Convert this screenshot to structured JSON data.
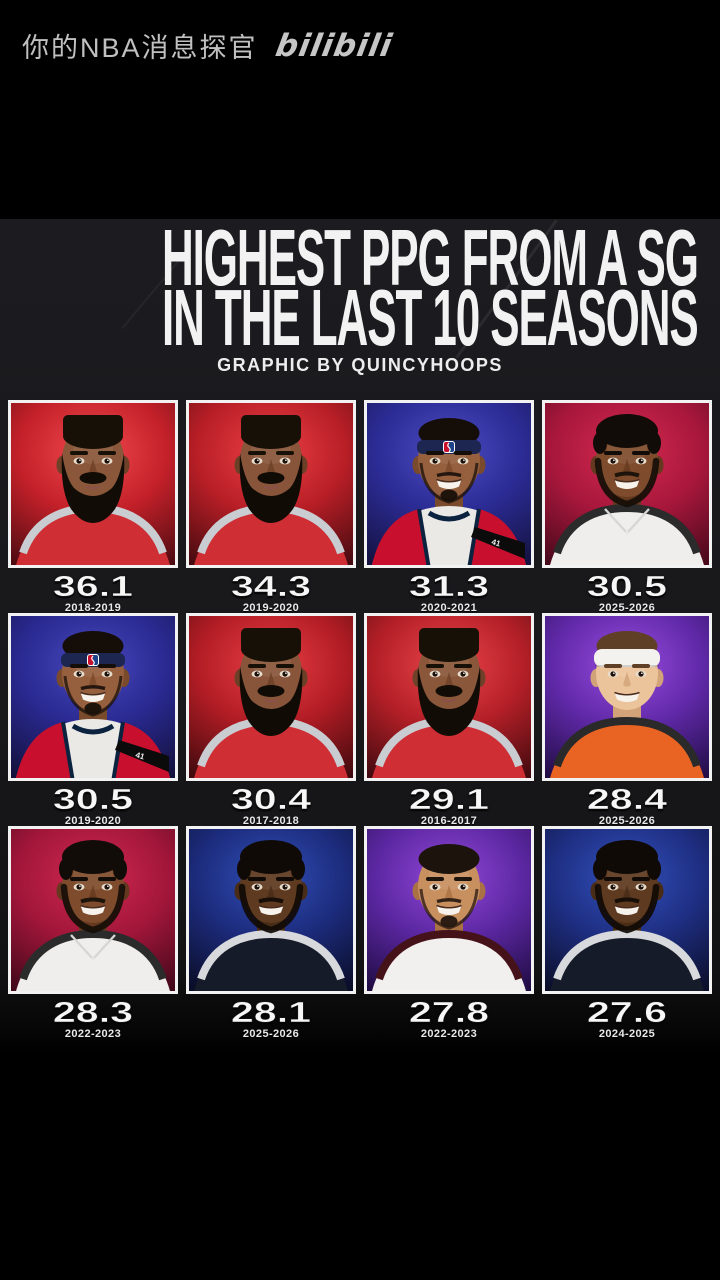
{
  "watermark": {
    "channel": "你的NBA消息探官",
    "logo": "bilibili"
  },
  "colors": {
    "page_bg": "#000000",
    "graphic_bg": "#19191c",
    "title_text": "#f2f2f2",
    "card_border": "#f2f2f2",
    "watermark_text": "#c0c0c0"
  },
  "graphic": {
    "title_line1": "HIGHEST PPG FROM A SG",
    "title_line2": "IN THE LAST 10 SEASONS",
    "credit": "GRAPHIC BY QUINCYHOOPS",
    "cards": [
      {
        "value": "36.1",
        "season": "2018-2019",
        "player": "james-harden",
        "portrait": {
          "bg": [
            "#f34a50",
            "#c32029",
            "#4e0c12"
          ],
          "skin": "#8a573a",
          "skin2": "#6e4128",
          "hair": "#171007",
          "hairStyle": "flattop",
          "headband": null,
          "beard": "full",
          "beardColor": "#120c07",
          "jersey": {
            "base": "#cf2e35",
            "trim": "#c9cdd1"
          },
          "chain": false,
          "sash": false,
          "smile": false
        }
      },
      {
        "value": "34.3",
        "season": "2019-2020",
        "player": "james-harden",
        "portrait": {
          "bg": [
            "#ee4046",
            "#b81e26",
            "#460b10"
          ],
          "skin": "#88553a",
          "skin2": "#6c4027",
          "hair": "#171007",
          "hairStyle": "flattop",
          "headband": null,
          "beard": "full",
          "beardColor": "#110b06",
          "jersey": {
            "base": "#cf2e35",
            "trim": "#c9cdd1"
          },
          "chain": false,
          "sash": false,
          "smile": false
        }
      },
      {
        "value": "31.3",
        "season": "2020-2021",
        "player": "bradley-beal",
        "portrait": {
          "bg": [
            "#4c4cc4",
            "#2b2b94",
            "#14123f"
          ],
          "skin": "#96603e",
          "skin2": "#7a4a2c",
          "hair": "#140d08",
          "hairStyle": "short",
          "headband": {
            "color": "#1c2650",
            "logo": true
          },
          "beard": "goatee",
          "beardColor": "#18100a",
          "jersey": {
            "base": "#ebe9e6",
            "accent": "#c8102e",
            "navy": "#0c2340",
            "patch": "41"
          },
          "chain": false,
          "sash": true,
          "smile": true
        }
      },
      {
        "value": "30.5",
        "season": "2025-2026",
        "player": "donovan-mitchell",
        "portrait": {
          "bg": [
            "#d62a50",
            "#a8173c",
            "#47091b"
          ],
          "skin": "#7e4c2c",
          "skin2": "#65391f",
          "hair": "#120c08",
          "hairStyle": "curly",
          "headband": null,
          "beard": "trim",
          "beardColor": "#150e08",
          "jersey": {
            "base": "#f0eeec",
            "trim": "#2b2b2b"
          },
          "chain": true,
          "sash": false,
          "smile": true
        }
      },
      {
        "value": "30.5",
        "season": "2019-2020",
        "player": "bradley-beal",
        "portrait": {
          "bg": [
            "#4848bf",
            "#292990",
            "#13113c"
          ],
          "skin": "#96603e",
          "skin2": "#7a4a2c",
          "hair": "#140d08",
          "hairStyle": "short",
          "headband": {
            "color": "#1c2650",
            "logo": true
          },
          "beard": "goatee",
          "beardColor": "#18100a",
          "jersey": {
            "base": "#ebe9e6",
            "accent": "#c8102e",
            "navy": "#0c2340",
            "patch": "41"
          },
          "chain": false,
          "sash": true,
          "smile": true
        }
      },
      {
        "value": "30.4",
        "season": "2017-2018",
        "player": "james-harden",
        "portrait": {
          "bg": [
            "#ea3e45",
            "#b11c24",
            "#400a0e"
          ],
          "skin": "#88553a",
          "skin2": "#6c4027",
          "hair": "#171007",
          "hairStyle": "flattop",
          "headband": null,
          "beard": "full",
          "beardColor": "#110b06",
          "jersey": {
            "base": "#cf2e35",
            "trim": "#c9cdd1"
          },
          "chain": false,
          "sash": false,
          "smile": false
        }
      },
      {
        "value": "29.1",
        "season": "2016-2017",
        "player": "james-harden",
        "portrait": {
          "bg": [
            "#ec454b",
            "#b41f27",
            "#430a0f"
          ],
          "skin": "#8a573a",
          "skin2": "#6e4128",
          "hair": "#171007",
          "hairStyle": "flattop",
          "headband": null,
          "beard": "full",
          "beardColor": "#120c07",
          "jersey": {
            "base": "#cf2e35",
            "trim": "#c9cdd1"
          },
          "chain": false,
          "sash": false,
          "smile": false
        }
      },
      {
        "value": "28.4",
        "season": "2025-2026",
        "player": "collin-gillespie",
        "portrait": {
          "bg": [
            "#9a4ce0",
            "#6029a8",
            "#220d47"
          ],
          "skin": "#ecc49c",
          "skin2": "#d2a378",
          "hair": "#5f4026",
          "hairStyle": "short",
          "headband": {
            "color": "#f4f2ee",
            "logo": false
          },
          "beard": "none",
          "beardColor": "#5f4026",
          "jersey": {
            "base": "#e96423",
            "trim": "#2a2a2a"
          },
          "chain": false,
          "sash": false,
          "smile": true
        }
      },
      {
        "value": "28.3",
        "season": "2022-2023",
        "player": "donovan-mitchell",
        "portrait": {
          "bg": [
            "#d22952",
            "#a2163a",
            "#42081a"
          ],
          "skin": "#7e4c2c",
          "skin2": "#65391f",
          "hair": "#120c08",
          "hairStyle": "curly",
          "headband": null,
          "beard": "trim",
          "beardColor": "#150e08",
          "jersey": {
            "base": "#f0eeec",
            "trim": "#2b2b2b"
          },
          "chain": true,
          "sash": false,
          "smile": true
        }
      },
      {
        "value": "28.1",
        "season": "2025-2026",
        "player": "anthony-edwards",
        "portrait": {
          "bg": [
            "#3050b8",
            "#1c2b7c",
            "#0a0d26"
          ],
          "skin": "#5e3a20",
          "skin2": "#492c16",
          "hair": "#0f0a06",
          "hairStyle": "curly",
          "headband": null,
          "beard": "trim",
          "beardColor": "#100a05",
          "jersey": {
            "base": "#161b29",
            "trim": "#d8d9dc"
          },
          "chain": false,
          "sash": false,
          "smile": true
        }
      },
      {
        "value": "27.8",
        "season": "2022-2023",
        "player": "devin-booker",
        "portrait": {
          "bg": [
            "#9348d9",
            "#5b27a1",
            "#200c44"
          ],
          "skin": "#c9905f",
          "skin2": "#aa7244",
          "hair": "#1c130c",
          "hairStyle": "short",
          "headband": null,
          "beard": "goatee",
          "beardColor": "#241710",
          "jersey": {
            "base": "#f2f0ee",
            "trim": "#45121a"
          },
          "chain": false,
          "sash": false,
          "smile": true
        }
      },
      {
        "value": "27.6",
        "season": "2024-2025",
        "player": "anthony-edwards",
        "portrait": {
          "bg": [
            "#3252bd",
            "#1e2e82",
            "#0b0e28"
          ],
          "skin": "#5e3a20",
          "skin2": "#492c16",
          "hair": "#0f0a06",
          "hairStyle": "curly",
          "headband": null,
          "beard": "trim",
          "beardColor": "#100a05",
          "jersey": {
            "base": "#161b29",
            "trim": "#d8d9dc"
          },
          "chain": false,
          "sash": false,
          "smile": true
        }
      }
    ]
  }
}
